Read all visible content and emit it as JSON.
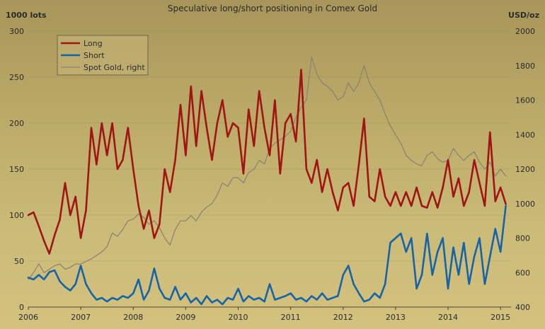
{
  "chart_data": {
    "type": "line",
    "title": "Speculative long/short positioning in Comex Gold",
    "ylabel_left": "1000 lots",
    "ylabel_right": "USD/oz",
    "ylim_left": [
      0,
      300
    ],
    "ylim_right": [
      400,
      2000
    ],
    "xlim": [
      2006,
      2015.2
    ],
    "x_ticks": [
      "2006",
      "2007",
      "2008",
      "2009",
      "2010",
      "2011",
      "2012",
      "2013",
      "2014",
      "2015"
    ],
    "y_ticks_left": [
      "0",
      "50",
      "100",
      "150",
      "200",
      "250",
      "300"
    ],
    "y_ticks_right": [
      "400",
      "600",
      "800",
      "1000",
      "1200",
      "1400",
      "1600",
      "1800",
      "2000"
    ],
    "grid": true,
    "legend_position": "top-left",
    "colors": {
      "long": "#a01414",
      "short": "#1763a8",
      "gold": "#8b8570"
    },
    "series": [
      {
        "name": "Long",
        "axis": "left",
        "x": [
          2006.0,
          2006.1,
          2006.2,
          2006.3,
          2006.4,
          2006.5,
          2006.6,
          2006.7,
          2006.8,
          2006.9,
          2007.0,
          2007.1,
          2007.2,
          2007.3,
          2007.4,
          2007.5,
          2007.6,
          2007.7,
          2007.8,
          2007.9,
          2008.0,
          2008.1,
          2008.2,
          2008.3,
          2008.4,
          2008.5,
          2008.6,
          2008.7,
          2008.8,
          2008.9,
          2009.0,
          2009.1,
          2009.2,
          2009.3,
          2009.4,
          2009.5,
          2009.6,
          2009.7,
          2009.8,
          2009.9,
          2010.0,
          2010.1,
          2010.2,
          2010.3,
          2010.4,
          2010.5,
          2010.6,
          2010.7,
          2010.8,
          2010.9,
          2011.0,
          2011.1,
          2011.2,
          2011.3,
          2011.4,
          2011.5,
          2011.6,
          2011.7,
          2011.8,
          2011.9,
          2012.0,
          2012.1,
          2012.2,
          2012.3,
          2012.4,
          2012.5,
          2012.6,
          2012.7,
          2012.8,
          2012.9,
          2013.0,
          2013.1,
          2013.2,
          2013.3,
          2013.4,
          2013.5,
          2013.6,
          2013.7,
          2013.8,
          2013.9,
          2014.0,
          2014.1,
          2014.2,
          2014.3,
          2014.4,
          2014.5,
          2014.6,
          2014.7,
          2014.8,
          2014.9,
          2015.0,
          2015.1
        ],
        "values": [
          100,
          103,
          88,
          72,
          58,
          78,
          95,
          135,
          100,
          120,
          75,
          105,
          195,
          155,
          200,
          165,
          200,
          150,
          160,
          195,
          150,
          110,
          85,
          105,
          75,
          90,
          150,
          125,
          160,
          220,
          165,
          240,
          175,
          235,
          195,
          160,
          200,
          225,
          185,
          200,
          195,
          145,
          215,
          175,
          235,
          195,
          165,
          225,
          145,
          200,
          210,
          180,
          258,
          150,
          135,
          160,
          125,
          150,
          125,
          105,
          130,
          135,
          110,
          155,
          205,
          120,
          115,
          150,
          120,
          110,
          125,
          110,
          125,
          110,
          130,
          110,
          108,
          125,
          108,
          130,
          160,
          120,
          140,
          110,
          125,
          160,
          135,
          110,
          190,
          115,
          130,
          112
        ]
      },
      {
        "name": "Short",
        "axis": "left",
        "x": [
          2006.0,
          2006.1,
          2006.2,
          2006.3,
          2006.4,
          2006.5,
          2006.6,
          2006.7,
          2006.8,
          2006.9,
          2007.0,
          2007.1,
          2007.2,
          2007.3,
          2007.4,
          2007.5,
          2007.6,
          2007.7,
          2007.8,
          2007.9,
          2008.0,
          2008.1,
          2008.2,
          2008.3,
          2008.4,
          2008.5,
          2008.6,
          2008.7,
          2008.8,
          2008.9,
          2009.0,
          2009.1,
          2009.2,
          2009.3,
          2009.4,
          2009.5,
          2009.6,
          2009.7,
          2009.8,
          2009.9,
          2010.0,
          2010.1,
          2010.2,
          2010.3,
          2010.4,
          2010.5,
          2010.6,
          2010.7,
          2010.8,
          2010.9,
          2011.0,
          2011.1,
          2011.2,
          2011.3,
          2011.4,
          2011.5,
          2011.6,
          2011.7,
          2011.8,
          2011.9,
          2012.0,
          2012.1,
          2012.2,
          2012.3,
          2012.4,
          2012.5,
          2012.6,
          2012.7,
          2012.8,
          2012.9,
          2013.0,
          2013.1,
          2013.2,
          2013.3,
          2013.4,
          2013.5,
          2013.6,
          2013.7,
          2013.8,
          2013.9,
          2014.0,
          2014.1,
          2014.2,
          2014.3,
          2014.4,
          2014.5,
          2014.6,
          2014.7,
          2014.8,
          2014.9,
          2015.0,
          2015.1
        ],
        "values": [
          32,
          30,
          35,
          30,
          38,
          40,
          28,
          22,
          18,
          25,
          45,
          25,
          15,
          8,
          10,
          6,
          10,
          8,
          12,
          10,
          15,
          30,
          8,
          18,
          42,
          20,
          10,
          8,
          22,
          8,
          15,
          5,
          10,
          3,
          12,
          5,
          8,
          3,
          10,
          8,
          20,
          6,
          12,
          8,
          10,
          6,
          25,
          8,
          10,
          12,
          15,
          8,
          10,
          6,
          12,
          8,
          15,
          8,
          10,
          12,
          35,
          45,
          25,
          15,
          6,
          8,
          15,
          10,
          25,
          70,
          75,
          80,
          60,
          75,
          20,
          35,
          80,
          35,
          60,
          75,
          20,
          65,
          35,
          70,
          25,
          55,
          75,
          25,
          55,
          85,
          60,
          110
        ]
      },
      {
        "name": "Spot Gold, right",
        "axis": "right",
        "x": [
          2006.0,
          2006.1,
          2006.2,
          2006.3,
          2006.4,
          2006.5,
          2006.6,
          2006.7,
          2006.8,
          2006.9,
          2007.0,
          2007.1,
          2007.2,
          2007.3,
          2007.4,
          2007.5,
          2007.6,
          2007.7,
          2007.8,
          2007.9,
          2008.0,
          2008.1,
          2008.2,
          2008.3,
          2008.4,
          2008.5,
          2008.6,
          2008.7,
          2008.8,
          2008.9,
          2009.0,
          2009.1,
          2009.2,
          2009.3,
          2009.4,
          2009.5,
          2009.6,
          2009.7,
          2009.8,
          2009.9,
          2010.0,
          2010.1,
          2010.2,
          2010.3,
          2010.4,
          2010.5,
          2010.6,
          2010.7,
          2010.8,
          2010.9,
          2011.0,
          2011.1,
          2011.2,
          2011.3,
          2011.4,
          2011.5,
          2011.6,
          2011.7,
          2011.8,
          2011.9,
          2012.0,
          2012.1,
          2012.2,
          2012.3,
          2012.4,
          2012.5,
          2012.6,
          2012.7,
          2012.8,
          2012.9,
          2013.0,
          2013.1,
          2013.2,
          2013.3,
          2013.4,
          2013.5,
          2013.6,
          2013.7,
          2013.8,
          2013.9,
          2014.0,
          2014.1,
          2014.2,
          2014.3,
          2014.4,
          2014.5,
          2014.6,
          2014.7,
          2014.8,
          2014.9,
          2015.0,
          2015.1
        ],
        "values": [
          560,
          600,
          650,
          600,
          620,
          640,
          650,
          620,
          630,
          650,
          650,
          665,
          680,
          700,
          720,
          750,
          830,
          810,
          850,
          900,
          910,
          940,
          920,
          880,
          900,
          860,
          800,
          760,
          850,
          900,
          900,
          930,
          900,
          950,
          980,
          1000,
          1050,
          1120,
          1100,
          1150,
          1150,
          1120,
          1180,
          1200,
          1250,
          1230,
          1320,
          1350,
          1370,
          1390,
          1420,
          1500,
          1560,
          1600,
          1850,
          1750,
          1700,
          1680,
          1650,
          1600,
          1620,
          1700,
          1650,
          1700,
          1800,
          1700,
          1650,
          1600,
          1520,
          1450,
          1400,
          1350,
          1280,
          1250,
          1230,
          1220,
          1280,
          1300,
          1260,
          1240,
          1250,
          1320,
          1280,
          1250,
          1280,
          1300,
          1240,
          1200,
          1240,
          1160,
          1200,
          1160
        ]
      }
    ]
  }
}
